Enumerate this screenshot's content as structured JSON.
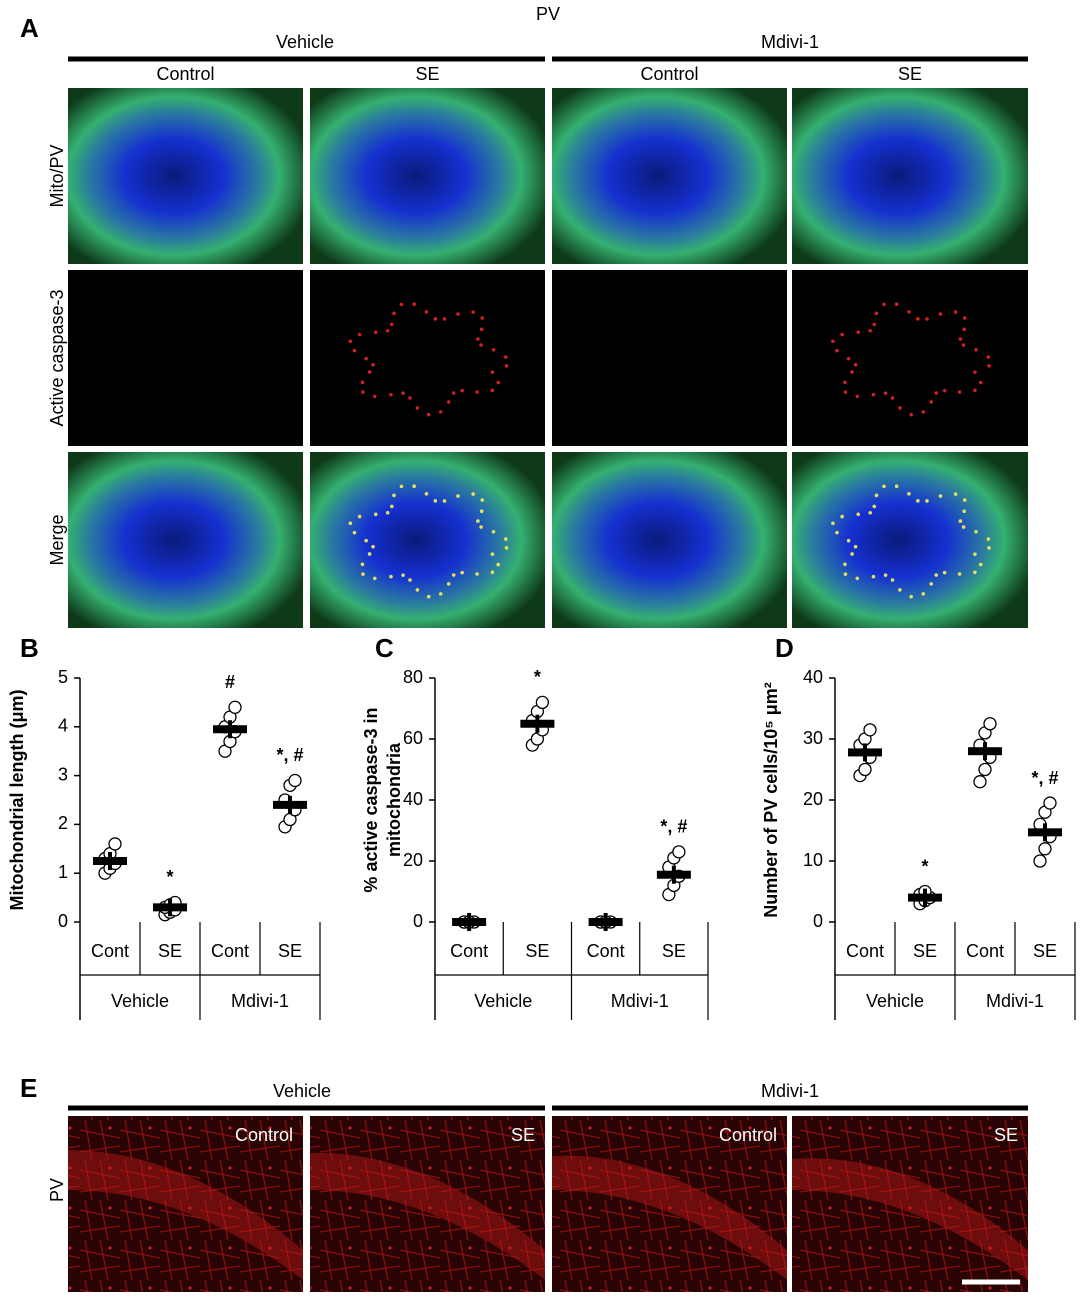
{
  "figure": {
    "panel_a": {
      "label": "A",
      "title": "PV",
      "groups": [
        "Vehicle",
        "Mdivi-1"
      ],
      "columns": [
        "Control",
        "SE",
        "Control",
        "SE"
      ],
      "rows": [
        "Mito/PV",
        "Active caspase-3",
        "Merge"
      ]
    },
    "panel_e": {
      "label": "E",
      "groups": [
        "Vehicle",
        "Mdivi-1"
      ],
      "columns": [
        "Control",
        "SE",
        "Control",
        "SE"
      ],
      "row": "PV"
    }
  },
  "chart_data": [
    {
      "type": "dot",
      "label": "B",
      "y_label": [
        "Mitochondrial length (μm)"
      ],
      "categories": [
        "Cont",
        "SE",
        "Cont",
        "SE"
      ],
      "groups": [
        "Vehicle",
        "Mdivi-1"
      ],
      "values": [
        1.25,
        0.3,
        3.95,
        2.4
      ],
      "points": [
        [
          1.0,
          1.1,
          1.2,
          1.3,
          1.4,
          1.6
        ],
        [
          0.15,
          0.2,
          0.25,
          0.3,
          0.35,
          0.4
        ],
        [
          3.5,
          3.7,
          3.9,
          4.0,
          4.2,
          4.4
        ],
        [
          1.95,
          2.1,
          2.3,
          2.5,
          2.8,
          2.9
        ]
      ],
      "annotations": [
        null,
        "*",
        "#",
        "*, #"
      ],
      "ylim": [
        0,
        5
      ],
      "yticks": [
        0,
        1,
        2,
        3,
        4,
        5
      ]
    },
    {
      "type": "dot",
      "label": "C",
      "y_label": [
        "% active caspase-3 in",
        "mitochondria"
      ],
      "categories": [
        "Cont",
        "SE",
        "Cont",
        "SE"
      ],
      "groups": [
        "Vehicle",
        "Mdivi-1"
      ],
      "values": [
        0,
        65,
        0,
        15.5
      ],
      "points": [
        [
          0,
          0,
          0,
          0,
          0
        ],
        [
          58,
          60,
          63,
          66,
          69,
          72
        ],
        [
          0,
          0,
          0,
          0,
          0
        ],
        [
          9,
          12,
          15,
          18,
          21,
          23
        ]
      ],
      "annotations": [
        null,
        "*",
        null,
        "*, #"
      ],
      "ylim": [
        0,
        80
      ],
      "yticks": [
        0,
        20,
        40,
        60,
        80
      ]
    },
    {
      "type": "dot",
      "label": "D",
      "y_label": [
        "Number of PV cells/10⁵ μm²"
      ],
      "categories": [
        "Cont",
        "SE",
        "Cont",
        "SE"
      ],
      "groups": [
        "Vehicle",
        "Mdivi-1"
      ],
      "values": [
        27.8,
        4,
        28,
        14.7
      ],
      "points": [
        [
          24,
          25,
          27,
          29,
          30,
          31.5
        ],
        [
          3,
          3.5,
          4,
          4.5,
          5
        ],
        [
          23,
          25,
          27,
          29,
          31,
          32.5
        ],
        [
          10,
          12,
          14,
          16,
          18,
          19.5
        ]
      ],
      "annotations": [
        null,
        "*",
        null,
        "*, #"
      ],
      "ylim": [
        0,
        40
      ],
      "yticks": [
        0,
        10,
        20,
        30,
        40
      ]
    }
  ]
}
